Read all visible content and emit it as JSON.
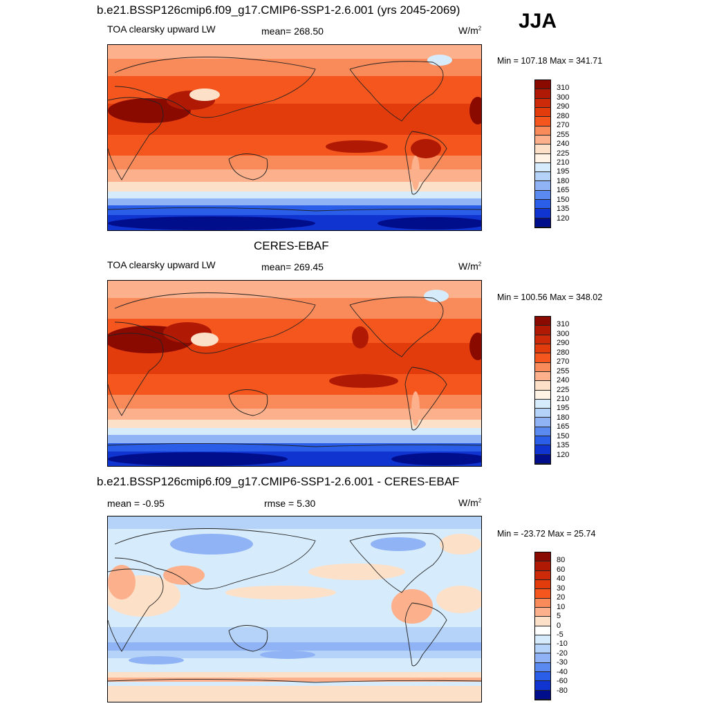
{
  "season": "JJA",
  "panels": [
    {
      "title": "b.e21.BSSP126cmip6.f09_g17.CMIP6-SSP1-2.6.001 (yrs 2045-2069)",
      "field": "TOA clearsky upward LW",
      "stat_left": "",
      "stat_mid": "mean= 268.50",
      "units": "W/m",
      "units_exp": "2",
      "minmax": "Min = 107.18 Max = 341.71",
      "kind": "abs",
      "colorbar_labels": [
        "310",
        "300",
        "290",
        "280",
        "270",
        "255",
        "240",
        "225",
        "210",
        "195",
        "180",
        "165",
        "150",
        "135",
        "120"
      ]
    },
    {
      "title": "CERES-EBAF",
      "field": "TOA clearsky upward LW",
      "stat_left": "",
      "stat_mid": "mean= 269.45",
      "units": "W/m",
      "units_exp": "2",
      "minmax": "Min = 100.56 Max = 348.02",
      "kind": "abs",
      "colorbar_labels": [
        "310",
        "300",
        "290",
        "280",
        "270",
        "255",
        "240",
        "225",
        "210",
        "195",
        "180",
        "165",
        "150",
        "135",
        "120"
      ]
    },
    {
      "title": "b.e21.BSSP126cmip6.f09_g17.CMIP6-SSP1-2.6.001 - CERES-EBAF",
      "field": "",
      "stat_left": "mean =  -0.95",
      "stat_mid": "rmse =   5.30",
      "units": "W/m",
      "units_exp": "2",
      "minmax": "Min = -23.72 Max =  25.74",
      "kind": "diff",
      "colorbar_labels": [
        "80",
        "60",
        "40",
        "30",
        "20",
        "10",
        "5",
        "0",
        "-5",
        "-10",
        "-20",
        "-30",
        "-40",
        "-60",
        "-80"
      ]
    }
  ],
  "colors": {
    "abs_scale": [
      "#8b0a00",
      "#b01a05",
      "#cc2a08",
      "#e23c0c",
      "#f4561e",
      "#f98a5a",
      "#fcb08c",
      "#fde0c8",
      "#fff3e6",
      "#d6ebfb",
      "#b5d2f8",
      "#8fb3f4",
      "#5a8af0",
      "#2a5ee8",
      "#1034d0",
      "#000e8c"
    ],
    "diff_scale": [
      "#8b0a00",
      "#b01a05",
      "#cc2a08",
      "#e23c0c",
      "#f4561e",
      "#f98a5a",
      "#fcb08c",
      "#fde0c8",
      "#ffffff",
      "#d6ebfb",
      "#b5d2f8",
      "#8fb3f4",
      "#5a8af0",
      "#2a5ee8",
      "#1034d0",
      "#000e8c"
    ]
  }
}
